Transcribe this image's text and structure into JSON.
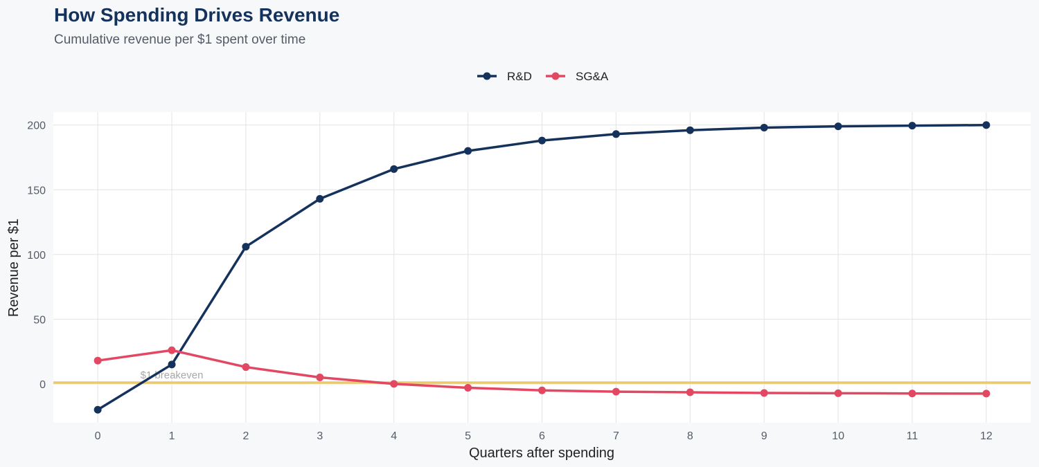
{
  "chart_data": {
    "type": "line",
    "title": "How Spending Drives Revenue",
    "subtitle": "Cumulative revenue per $1 spent over time",
    "xlabel": "Quarters after spending",
    "ylabel": "Revenue per $1",
    "x": [
      0,
      1,
      2,
      3,
      4,
      5,
      6,
      7,
      8,
      9,
      10,
      11,
      12
    ],
    "xlim": [
      -0.6,
      12.6
    ],
    "ylim": [
      -30,
      210
    ],
    "yticks": [
      0,
      50,
      100,
      150,
      200
    ],
    "grid": true,
    "legend_position": "top-center",
    "series": [
      {
        "name": "R&D",
        "color": "#14325c",
        "values": [
          -20,
          15,
          106,
          143,
          166,
          180,
          188,
          193,
          196,
          198,
          199,
          199.5,
          200
        ]
      },
      {
        "name": "SG&A",
        "color": "#e34862",
        "values": [
          18,
          26,
          13,
          5,
          0,
          -3,
          -5,
          -6,
          -6.5,
          -7,
          -7.2,
          -7.4,
          -7.5
        ]
      }
    ],
    "reference_line": {
      "y": 1,
      "label": "$1 breakeven",
      "label_x": 1,
      "color": "#ebca6e"
    }
  }
}
